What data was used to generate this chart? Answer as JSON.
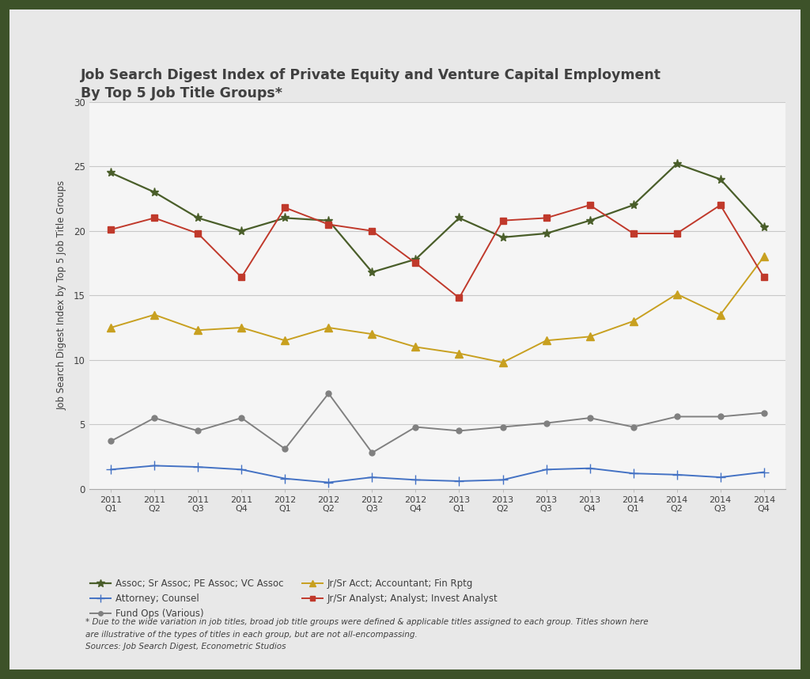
{
  "title": "Job Search Digest Index of Private Equity and Venture Capital Employment\nBy Top 5 Job Title Groups*",
  "ylabel": "Job Search Digest Index by Top 5 Job Title Groups",
  "xlabels": [
    "2011\nQ1",
    "2011\nQ2",
    "2011\nQ3",
    "2011\nQ4",
    "2012\nQ1",
    "2012\nQ2",
    "2012\nQ3",
    "2012\nQ4",
    "2013\nQ1",
    "2013\nQ2",
    "2013\nQ3",
    "2013\nQ4",
    "2014\nQ1",
    "2014\nQ2",
    "2014\nQ3",
    "2014\nQ4"
  ],
  "ylim": [
    0,
    30
  ],
  "yticks": [
    0,
    5,
    10,
    15,
    20,
    25,
    30
  ],
  "series_order": [
    "assoc",
    "attorney",
    "fund_ops",
    "acct",
    "analyst"
  ],
  "series": {
    "assoc": {
      "label": "Assoc; Sr Assoc; PE Assoc; VC Assoc",
      "color": "#4a5e2a",
      "marker": "*",
      "markersize": 8,
      "linewidth": 1.6,
      "values": [
        24.5,
        23.0,
        21.0,
        20.0,
        21.0,
        20.8,
        16.8,
        17.8,
        21.0,
        19.5,
        19.8,
        20.8,
        22.0,
        25.2,
        24.0,
        20.3
      ]
    },
    "attorney": {
      "label": "Attorney; Counsel",
      "color": "#4472c4",
      "marker": "+",
      "markersize": 8,
      "linewidth": 1.4,
      "values": [
        1.5,
        1.8,
        1.7,
        1.5,
        0.8,
        0.5,
        0.9,
        0.7,
        0.6,
        0.7,
        1.5,
        1.6,
        1.2,
        1.1,
        0.9,
        1.3
      ]
    },
    "fund_ops": {
      "label": "Fund Ops (Various)",
      "color": "#808080",
      "marker": "o",
      "markersize": 5,
      "linewidth": 1.4,
      "values": [
        3.7,
        5.5,
        4.5,
        5.5,
        3.1,
        7.4,
        2.8,
        4.8,
        4.5,
        4.8,
        5.1,
        5.5,
        4.8,
        5.6,
        5.6,
        5.9
      ]
    },
    "acct": {
      "label": "Jr/Sr Acct; Accountant; Fin Rptg",
      "color": "#c8a020",
      "marker": "^",
      "markersize": 7,
      "linewidth": 1.4,
      "values": [
        12.5,
        13.5,
        12.3,
        12.5,
        11.5,
        12.5,
        12.0,
        11.0,
        10.5,
        9.8,
        11.5,
        11.8,
        13.0,
        15.1,
        13.5,
        18.0
      ]
    },
    "analyst": {
      "label": "Jr/Sr Analyst; Analyst; Invest Analyst",
      "color": "#c0392b",
      "marker": "s",
      "markersize": 6,
      "linewidth": 1.4,
      "values": [
        20.1,
        21.0,
        19.8,
        16.4,
        21.8,
        20.5,
        20.0,
        17.5,
        14.8,
        20.8,
        21.0,
        22.0,
        19.8,
        19.8,
        22.0,
        16.4
      ]
    }
  },
  "footnote_line1": "* Due to the wide variation in job titles, broad job title groups were defined & applicable titles assigned to each group. Titles shown here",
  "footnote_line2": "are illustrative of the types of titles in each group, but are not all-encompassing.",
  "footnote_line3": "Sources: Job Search Digest, Econometric Studios",
  "border_color": "#3d5229",
  "outer_bg": "#e8e8e8",
  "inner_bg": "#f5f5f5",
  "title_color": "#404040",
  "text_color": "#404040",
  "grid_color": "#c8c8c8",
  "border_width": 12
}
